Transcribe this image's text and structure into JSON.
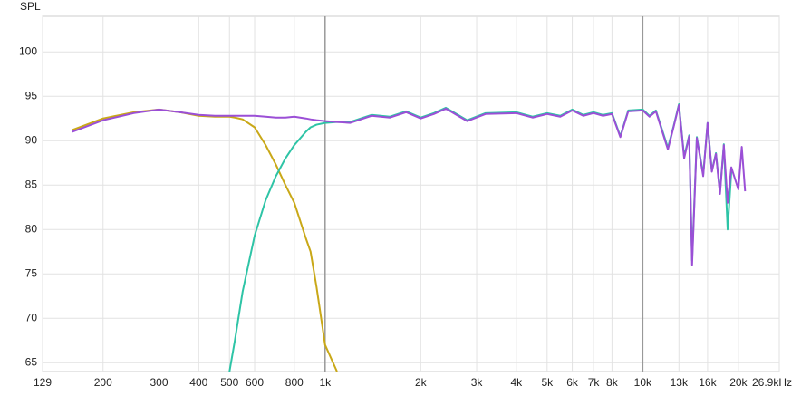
{
  "chart_data": {
    "type": "line",
    "y_label": "SPL",
    "x_log": true,
    "grid": true,
    "xlim": [
      129,
      26900
    ],
    "ylim": [
      64,
      104
    ],
    "xticks": [
      129,
      200,
      300,
      400,
      500,
      600,
      800,
      {
        "value": 1000,
        "label": "1k"
      },
      {
        "value": 2000,
        "label": "2k"
      },
      {
        "value": 3000,
        "label": "3k"
      },
      {
        "value": 4000,
        "label": "4k"
      },
      {
        "value": 5000,
        "label": "5k"
      },
      {
        "value": 6000,
        "label": "6k"
      },
      {
        "value": 7000,
        "label": "7k"
      },
      {
        "value": 8000,
        "label": "8k"
      },
      {
        "value": 10000,
        "label": "10k"
      },
      {
        "value": 13000,
        "label": "13k"
      },
      {
        "value": 16000,
        "label": "16k"
      },
      {
        "value": 20000,
        "label": "20k"
      },
      {
        "value": 26900,
        "label": "26.9kHz"
      }
    ],
    "yticks": [
      65,
      70,
      75,
      80,
      85,
      90,
      95,
      100
    ],
    "x": [
      160,
      200,
      250,
      300,
      350,
      400,
      450,
      500,
      520,
      550,
      600,
      650,
      700,
      750,
      800,
      870,
      900,
      940,
      1000,
      1090,
      1200,
      1400,
      1600,
      1800,
      2000,
      2200,
      2400,
      2800,
      3200,
      4000,
      4500,
      5000,
      5500,
      6000,
      6500,
      7000,
      7500,
      8000,
      8500,
      9000,
      10000,
      10500,
      11000,
      12000,
      12500,
      13000,
      13500,
      14000,
      14300,
      14800,
      15500,
      16000,
      16500,
      17000,
      17500,
      18000,
      18500,
      19000,
      20000,
      20500,
      21000
    ],
    "series": [
      {
        "color": "#c9a818",
        "values": [
          91.2,
          92.5,
          93.2,
          93.5,
          93.2,
          92.8,
          92.7,
          92.7,
          92.6,
          92.4,
          91.5,
          89.5,
          87.3,
          85.0,
          83.0,
          79.0,
          77.5,
          73.5,
          67.0,
          64.0,
          null,
          null,
          null,
          null,
          null,
          null,
          null,
          null,
          null,
          null,
          null,
          null,
          null,
          null,
          null,
          null,
          null,
          null,
          null,
          null,
          null,
          null,
          null,
          null,
          null,
          null,
          null,
          null,
          null,
          null,
          null,
          null,
          null,
          null,
          null,
          null,
          null,
          null,
          null,
          null,
          null
        ]
      },
      {
        "color": "#2ec4a6",
        "values": [
          null,
          null,
          null,
          null,
          null,
          null,
          null,
          64.0,
          67.5,
          73.0,
          79.3,
          83.3,
          86.0,
          88.0,
          89.5,
          91.0,
          91.5,
          91.8,
          92.0,
          92.1,
          92.1,
          92.9,
          92.7,
          93.3,
          92.6,
          93.1,
          93.7,
          92.3,
          93.1,
          93.2,
          92.7,
          93.1,
          92.8,
          93.5,
          92.9,
          93.2,
          92.9,
          93.1,
          90.5,
          93.4,
          93.5,
          92.8,
          93.4,
          89.2,
          91.6,
          94.1,
          88.2,
          90.6,
          76.5,
          90.4,
          86.2,
          92.0,
          86.6,
          88.6,
          84.2,
          89.6,
          80.0,
          86.5,
          null,
          null,
          null
        ]
      },
      {
        "color": "#9b4fd6",
        "values": [
          91.0,
          92.3,
          93.1,
          93.5,
          93.2,
          92.9,
          92.8,
          92.8,
          92.8,
          92.8,
          92.8,
          92.7,
          92.6,
          92.6,
          92.7,
          92.5,
          92.4,
          92.3,
          92.2,
          92.1,
          92.0,
          92.8,
          92.6,
          93.2,
          92.5,
          93.0,
          93.6,
          92.2,
          93.0,
          93.1,
          92.6,
          93.0,
          92.7,
          93.4,
          92.8,
          93.1,
          92.8,
          93.0,
          90.4,
          93.3,
          93.4,
          92.7,
          93.3,
          89.0,
          91.5,
          94.0,
          88.0,
          90.5,
          76.0,
          90.3,
          86.0,
          92.0,
          86.5,
          88.5,
          84.0,
          89.5,
          83.0,
          87.0,
          84.5,
          89.3,
          84.3
        ]
      }
    ]
  }
}
